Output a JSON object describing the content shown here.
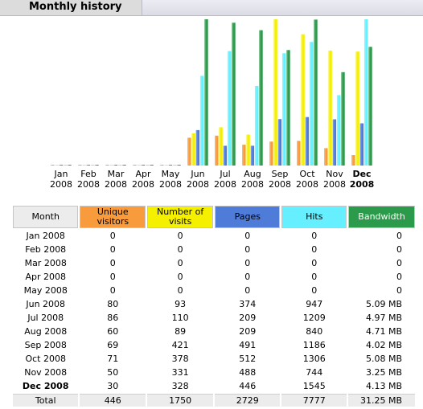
{
  "header": {
    "title": "Monthly history"
  },
  "colors": {
    "visitors": "#f89b3d",
    "visits": "#f5f000",
    "pages": "#4f7bd9",
    "hits": "#66f0ff",
    "bandwidth": "#2b9a4a",
    "month_header": "#ececec"
  },
  "chart_data": {
    "type": "bar",
    "categories": [
      "Jan 2008",
      "Feb 2008",
      "Mar 2008",
      "Apr 2008",
      "May 2008",
      "Jun 2008",
      "Jul 2008",
      "Aug 2008",
      "Sep 2008",
      "Oct 2008",
      "Nov 2008",
      "Dec 2008"
    ],
    "current_month_index": 11,
    "series": [
      {
        "name": "Unique visitors",
        "values": [
          0,
          0,
          0,
          0,
          0,
          80,
          86,
          60,
          69,
          71,
          50,
          30
        ]
      },
      {
        "name": "Number of visits",
        "values": [
          0,
          0,
          0,
          0,
          0,
          93,
          110,
          89,
          421,
          378,
          331,
          328
        ]
      },
      {
        "name": "Pages",
        "values": [
          0,
          0,
          0,
          0,
          0,
          374,
          209,
          209,
          491,
          512,
          488,
          446
        ]
      },
      {
        "name": "Hits",
        "values": [
          0,
          0,
          0,
          0,
          0,
          947,
          1209,
          840,
          1186,
          1306,
          744,
          1545
        ]
      },
      {
        "name": "Bandwidth",
        "values": [
          0,
          0,
          0,
          0,
          0,
          5.09,
          4.97,
          4.71,
          4.02,
          5.08,
          3.25,
          4.13
        ]
      }
    ]
  },
  "table": {
    "headers": [
      "Month",
      "Unique visitors",
      "Number of visits",
      "Pages",
      "Hits",
      "Bandwidth"
    ],
    "rows": [
      [
        "Jan 2008",
        "0",
        "0",
        "0",
        "0",
        "0"
      ],
      [
        "Feb 2008",
        "0",
        "0",
        "0",
        "0",
        "0"
      ],
      [
        "Mar 2008",
        "0",
        "0",
        "0",
        "0",
        "0"
      ],
      [
        "Apr 2008",
        "0",
        "0",
        "0",
        "0",
        "0"
      ],
      [
        "May 2008",
        "0",
        "0",
        "0",
        "0",
        "0"
      ],
      [
        "Jun 2008",
        "80",
        "93",
        "374",
        "947",
        "5.09 MB"
      ],
      [
        "Jul 2008",
        "86",
        "110",
        "209",
        "1209",
        "4.97 MB"
      ],
      [
        "Aug 2008",
        "60",
        "89",
        "209",
        "840",
        "4.71 MB"
      ],
      [
        "Sep 2008",
        "69",
        "421",
        "491",
        "1186",
        "4.02 MB"
      ],
      [
        "Oct 2008",
        "71",
        "378",
        "512",
        "1306",
        "5.08 MB"
      ],
      [
        "Nov 2008",
        "50",
        "331",
        "488",
        "744",
        "3.25 MB"
      ],
      [
        "Dec 2008",
        "30",
        "328",
        "446",
        "1545",
        "4.13 MB"
      ]
    ],
    "total": [
      "Total",
      "446",
      "1750",
      "2729",
      "7777",
      "31.25 MB"
    ]
  }
}
